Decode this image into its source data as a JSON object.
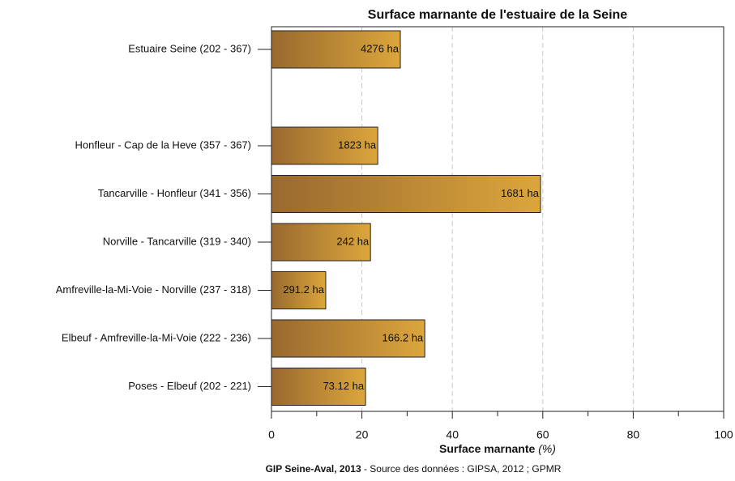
{
  "chart_data": {
    "type": "barh",
    "title": "Surface marnante de l'estuaire de la Seine",
    "categories": [
      "Estuaire Seine (202 - 367)",
      null,
      "Honfleur - Cap de la Heve (357 - 367)",
      "Tancarville - Honfleur (341 - 356)",
      "Norville - Tancarville (319 - 340)",
      "Amfreville-la-Mi-Voie - Norville (237 - 318)",
      "Elbeuf - Amfreville-la-Mi-Voie (222 - 236)",
      "Poses - Elbeuf (202 - 221)"
    ],
    "values": [
      28.5,
      null,
      23.5,
      59.5,
      21.9,
      12.0,
      33.9,
      20.8
    ],
    "bar_labels": [
      "4276 ha",
      null,
      "1823 ha",
      "1681 ha",
      "242 ha",
      "291.2 ha",
      "166.2 ha",
      "73.12 ha"
    ],
    "color_start": "#99692f",
    "color_end": "#dca63c",
    "xlim": [
      0,
      100
    ],
    "xticks": [
      0,
      20,
      40,
      60,
      80,
      100
    ],
    "xminorticks": [
      10,
      30,
      50,
      70,
      90
    ],
    "grid": true,
    "xlabel": "Surface marnante",
    "xlabel_unit": "(%)",
    "source_bold": "GIP Seine-Aval, 2013",
    "source_rest": " - Source des données : GIPSA, 2012 ; GPMR"
  }
}
